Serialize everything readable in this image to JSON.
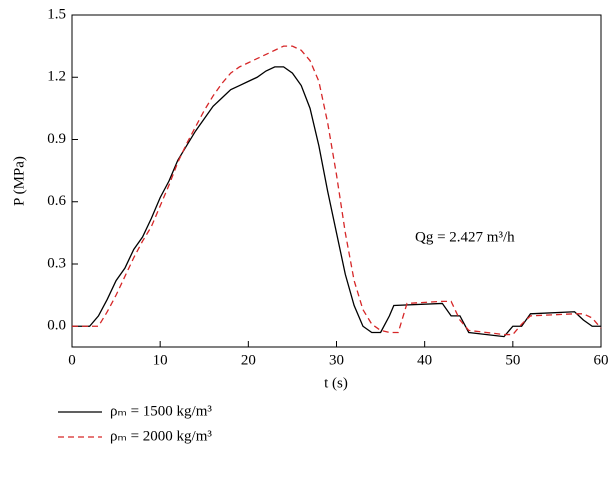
{
  "chart_data": {
    "type": "line",
    "xlabel": "t (s)",
    "ylabel": "P (MPa)",
    "annotation": "Qg = 2.427 m³/h",
    "xlim": [
      0,
      60
    ],
    "xticks": [
      0,
      10,
      20,
      30,
      40,
      50,
      60
    ],
    "ylim": [
      -0.1,
      1.5
    ],
    "yticks": [
      {
        "value": 0,
        "label": "0.0"
      },
      0.3,
      0.6,
      0.9,
      1.2,
      1.5
    ],
    "series": [
      {
        "name": "ρₘ = 1500 kg/m³",
        "color": "#000000",
        "dashed": false,
        "x": [
          0,
          2,
          3,
          4,
          5,
          6,
          7,
          8,
          9,
          10,
          11,
          12,
          13,
          14,
          15,
          16,
          17,
          18,
          19,
          20,
          21,
          22,
          23,
          24,
          25,
          26,
          27,
          28,
          29,
          30,
          31,
          32,
          33,
          34,
          35,
          36,
          36.5,
          42,
          43,
          44,
          45,
          49,
          50,
          51,
          52,
          57,
          58,
          59,
          60
        ],
        "values": [
          0,
          0,
          0.05,
          0.13,
          0.22,
          0.28,
          0.37,
          0.43,
          0.52,
          0.62,
          0.7,
          0.8,
          0.87,
          0.94,
          1.0,
          1.06,
          1.1,
          1.14,
          1.16,
          1.18,
          1.2,
          1.23,
          1.25,
          1.25,
          1.22,
          1.16,
          1.05,
          0.87,
          0.65,
          0.45,
          0.25,
          0.1,
          0.0,
          -0.03,
          -0.03,
          0.05,
          0.1,
          0.11,
          0.05,
          0.05,
          -0.03,
          -0.05,
          0.0,
          0.0,
          0.06,
          0.07,
          0.03,
          0.0,
          0.0
        ]
      },
      {
        "name": "ρₘ = 2000 kg/m³",
        "color": "#d62728",
        "dashed": true,
        "x": [
          0,
          3,
          4,
          5,
          6,
          7,
          8,
          9,
          10,
          11,
          12,
          13,
          14,
          15,
          16,
          17,
          18,
          19,
          20,
          21,
          22,
          23,
          24,
          25,
          26,
          27,
          28,
          29,
          30,
          31,
          32,
          33,
          34,
          35,
          36,
          37,
          38,
          42,
          43,
          44,
          45,
          49,
          50,
          51,
          52,
          57,
          58,
          59,
          60
        ],
        "values": [
          0,
          0,
          0.07,
          0.15,
          0.24,
          0.33,
          0.41,
          0.48,
          0.58,
          0.68,
          0.79,
          0.88,
          0.96,
          1.04,
          1.11,
          1.17,
          1.22,
          1.25,
          1.27,
          1.29,
          1.31,
          1.33,
          1.35,
          1.35,
          1.33,
          1.28,
          1.18,
          0.98,
          0.73,
          0.45,
          0.22,
          0.08,
          0.01,
          -0.02,
          -0.03,
          -0.03,
          0.11,
          0.12,
          0.12,
          0.03,
          -0.02,
          -0.04,
          -0.04,
          0.01,
          0.05,
          0.06,
          0.06,
          0.04,
          -0.01
        ]
      }
    ]
  }
}
